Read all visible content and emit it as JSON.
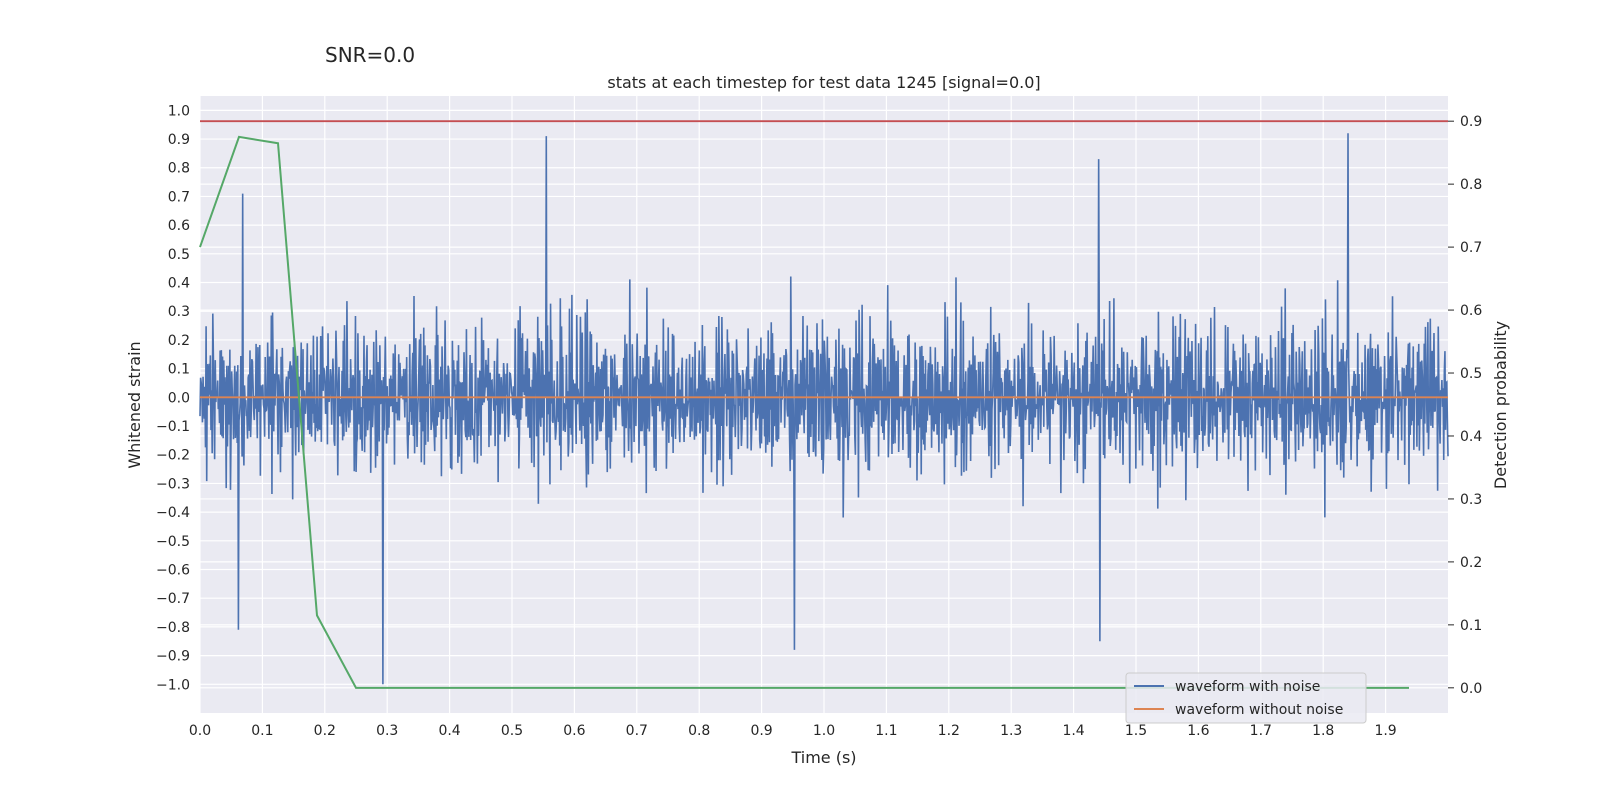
{
  "suptitle": "SNR=0.0",
  "chart_data": {
    "type": "line",
    "title": "stats at each timestep for test data 1245 [signal=0.0]",
    "xlabel": "Time (s)",
    "ylabel": "Whitened strain",
    "y2label": "Detection probability",
    "xlim": [
      0.0,
      2.0
    ],
    "ylim": [
      -1.1,
      1.05
    ],
    "y2lim": [
      -0.04,
      0.94
    ],
    "xticks": [
      "0.0",
      "0.1",
      "0.2",
      "0.3",
      "0.4",
      "0.5",
      "0.6",
      "0.7",
      "0.8",
      "0.9",
      "1.0",
      "1.1",
      "1.2",
      "1.3",
      "1.4",
      "1.5",
      "1.6",
      "1.7",
      "1.8",
      "1.9"
    ],
    "yticks": [
      "1.0",
      "0.9",
      "0.8",
      "0.7",
      "0.6",
      "0.5",
      "0.4",
      "0.3",
      "0.2",
      "0.1",
      "0.0",
      "−0.1",
      "−0.2",
      "−0.3",
      "−0.4",
      "−0.5",
      "−0.6",
      "−0.7",
      "−0.8",
      "−0.9",
      "−1.0"
    ],
    "y2ticks": [
      "0.9",
      "0.8",
      "0.7",
      "0.6",
      "0.5",
      "0.4",
      "0.3",
      "0.2",
      "0.1",
      "0.0"
    ],
    "grid": true,
    "colors": {
      "noisy": "#4c72b0",
      "clean": "#dd8452",
      "probability": "#55a868",
      "threshold": "#c44e52",
      "background": "#eaeaf2",
      "grid": "#ffffff"
    },
    "series": [
      {
        "name": "waveform with noise",
        "axis": "left",
        "generated": "pseudo-random whitened noise, 2048 samples over 0–2 s, amplitude about ±0.9",
        "n_samples": 2048,
        "seed": 1245,
        "spikes": [
          [
            0.062,
            -0.81
          ],
          [
            0.068,
            0.71
          ],
          [
            0.293,
            -1.0
          ],
          [
            0.555,
            0.91
          ],
          [
            0.953,
            -0.88
          ],
          [
            1.442,
            -0.85
          ],
          [
            1.44,
            0.83
          ],
          [
            1.84,
            0.92
          ]
        ]
      },
      {
        "name": "waveform without noise",
        "axis": "left",
        "x": [
          0.0,
          2.0
        ],
        "y": [
          0.0,
          0.0
        ]
      },
      {
        "name": "detection probability",
        "axis": "right",
        "x": [
          0.0,
          0.0625,
          0.125,
          0.1875,
          0.25,
          0.3125,
          0.375,
          0.4375,
          0.5,
          0.5625,
          0.625,
          0.6875,
          0.75,
          0.8125,
          0.875,
          0.9375,
          1.0,
          1.0625,
          1.125,
          1.1875,
          1.25,
          1.3125,
          1.375,
          1.4375,
          1.5,
          1.5625,
          1.625,
          1.6875,
          1.75,
          1.8125,
          1.875,
          1.9375
        ],
        "y": [
          0.7,
          0.875,
          0.865,
          0.115,
          0.0,
          0.0,
          0.0,
          0.0,
          0.0,
          0.0,
          0.0,
          0.0,
          0.0,
          0.0,
          0.0,
          0.0,
          0.0,
          0.0,
          0.0,
          0.0,
          0.0,
          0.0,
          0.0,
          0.0,
          0.0,
          0.0,
          0.0,
          0.0,
          0.0,
          0.0,
          0.0,
          0.0
        ]
      },
      {
        "name": "threshold",
        "axis": "right",
        "y": 0.9
      }
    ],
    "legend": {
      "location": "lower-right",
      "entries": [
        "waveform with noise",
        "waveform without noise"
      ]
    }
  }
}
